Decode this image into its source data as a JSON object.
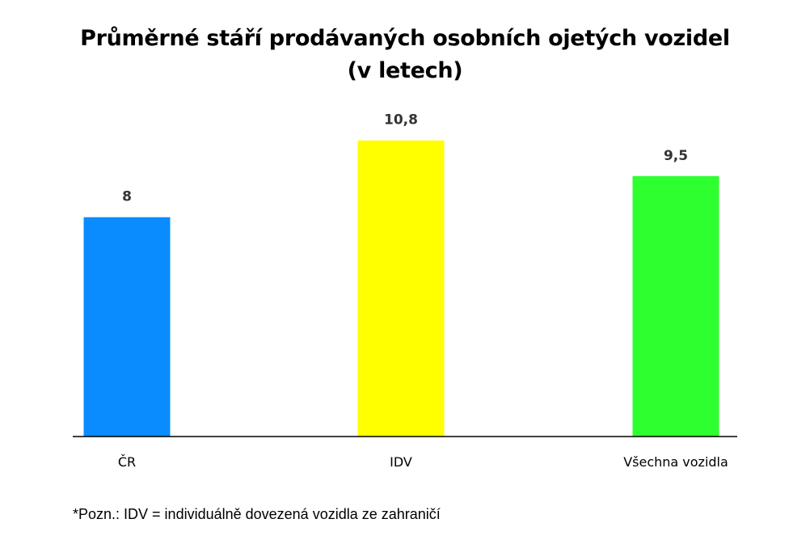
{
  "chart_data": {
    "type": "bar",
    "title_lines": [
      "Průměrné stáří prodávaných osobních ojetých vozidel",
      "(v letech)"
    ],
    "categories": [
      "ČR",
      "IDV",
      "Všechna vozidla"
    ],
    "values": [
      8,
      10.8,
      9.5
    ],
    "value_labels": [
      "8",
      "10,8",
      "9,5"
    ],
    "colors": [
      "#0a8cff",
      "#ffff00",
      "#2eff2e"
    ],
    "ylim": [
      0,
      11.5
    ],
    "grid": false,
    "legend": "none",
    "xlabel": "",
    "ylabel": ""
  },
  "footnote": "*Pozn.: IDV = individuálně dovezená vozidla ze zahraničí"
}
